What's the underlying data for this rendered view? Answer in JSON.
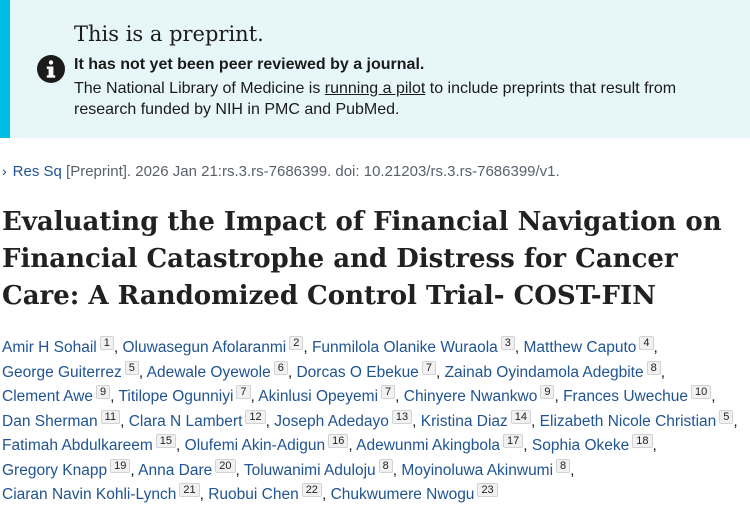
{
  "banner": {
    "title": "This is a preprint.",
    "strong": "It has not yet been peer reviewed by a journal.",
    "body_before": "The National Library of Medicine is ",
    "link": "running a pilot",
    "body_after": " to include preprints that result from research funded by NIH in PMC and PubMed.",
    "icon": "info-icon"
  },
  "citation": {
    "source_link": "Res Sq",
    "text": "[Preprint]. 2026 Jan 21:rs.3.rs-7686399. doi: 10.21203/rs.3.rs-7686399/v1."
  },
  "article": {
    "title": "Evaluating the Impact of Financial Navigation on Financial Catastrophe and Distress for Cancer Care: A Randomized Control Trial- COST-FIN"
  },
  "authors": [
    {
      "name": "Amir H Sohail",
      "aff": "1"
    },
    {
      "name": "Oluwasegun Afolaranmi",
      "aff": "2"
    },
    {
      "name": "Funmilola Olanike Wuraola",
      "aff": "3"
    },
    {
      "name": "Matthew Caputo",
      "aff": "4"
    },
    {
      "name": "George Guiterrez",
      "aff": "5"
    },
    {
      "name": "Adewale Oyewole",
      "aff": "6"
    },
    {
      "name": "Dorcas O Ebekue",
      "aff": "7"
    },
    {
      "name": "Zainab Oyindamola Adegbite",
      "aff": "8"
    },
    {
      "name": "Clement Awe",
      "aff": "9"
    },
    {
      "name": "Titilope Ogunniyi",
      "aff": "7"
    },
    {
      "name": "Akinlusi Opeyemi",
      "aff": "7"
    },
    {
      "name": "Chinyere Nwankwo",
      "aff": "9"
    },
    {
      "name": "Frances Uwechue",
      "aff": "10"
    },
    {
      "name": "Dan Sherman",
      "aff": "11"
    },
    {
      "name": "Clara N Lambert",
      "aff": "12"
    },
    {
      "name": "Joseph Adedayo",
      "aff": "13"
    },
    {
      "name": "Kristina Diaz",
      "aff": "14"
    },
    {
      "name": "Elizabeth Nicole Christian",
      "aff": "5"
    },
    {
      "name": "Fatimah Abdulkareem",
      "aff": "15"
    },
    {
      "name": "Olufemi Akin-Adigun",
      "aff": "16"
    },
    {
      "name": "Adewunmi Akingbola",
      "aff": "17"
    },
    {
      "name": "Sophia Okeke",
      "aff": "18"
    },
    {
      "name": "Gregory Knapp",
      "aff": "19"
    },
    {
      "name": "Anna Dare",
      "aff": "20"
    },
    {
      "name": "Toluwanimi Aduloju",
      "aff": "8"
    },
    {
      "name": "Moyinoluwa Akinwumi",
      "aff": "8"
    },
    {
      "name": "Ciaran Navin Kohli-Lynch",
      "aff": "21"
    },
    {
      "name": "Ruobui Chen",
      "aff": "22"
    },
    {
      "name": "Chukwumere Nwogu",
      "aff": "23"
    }
  ]
}
